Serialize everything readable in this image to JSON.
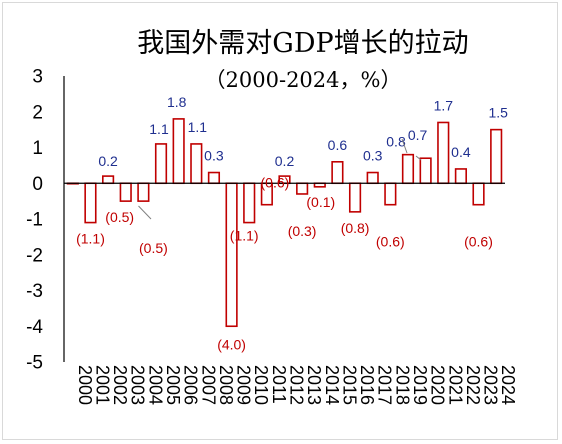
{
  "chart_data": {
    "type": "bar",
    "title": "我国外需对GDP增长的拉动",
    "subtitle": "（2000-2024，%）",
    "categories": [
      "2000",
      "2001",
      "2002",
      "2003",
      "2004",
      "2005",
      "2006",
      "2007",
      "2008",
      "2009",
      "2010",
      "2011",
      "2012",
      "2013",
      "2014",
      "2015",
      "2016",
      "2017",
      "2018",
      "2019",
      "2020",
      "2021",
      "2022",
      "2023",
      "2024"
    ],
    "values": [
      0.0,
      -1.1,
      0.2,
      -0.5,
      -0.5,
      1.1,
      1.8,
      1.1,
      0.3,
      -4.0,
      -1.1,
      -0.6,
      0.2,
      -0.3,
      -0.1,
      0.6,
      -0.8,
      0.3,
      -0.6,
      0.8,
      0.7,
      1.7,
      0.4,
      -0.6,
      1.5
    ],
    "data_labels": [
      "",
      "(1.1)",
      "0.2",
      "(0.5)",
      "(0.5)",
      "1.1",
      "1.8",
      "1.1",
      "0.3",
      "(4.0)",
      "(1.1)",
      "(0.6)",
      "0.2",
      "(0.3)",
      "(0.1)",
      "0.6",
      "(0.8)",
      "0.3",
      "(0.6)",
      "0.8",
      "0.7",
      "1.7",
      "0.4",
      "(0.6)",
      "1.5"
    ],
    "ylim": [
      -5,
      3
    ],
    "yticks": [
      "3",
      "2",
      "1",
      "0",
      "-1",
      "-2",
      "-3",
      "-4",
      "-5"
    ],
    "xlabel": "",
    "ylabel": "",
    "grid": false,
    "legend": "none",
    "colors": {
      "bar_stroke": "#c00000",
      "bar_fill": "#ffffff",
      "positive_label": "#1f2f8f",
      "negative_label": "#c00000",
      "axis": "#000000"
    }
  }
}
